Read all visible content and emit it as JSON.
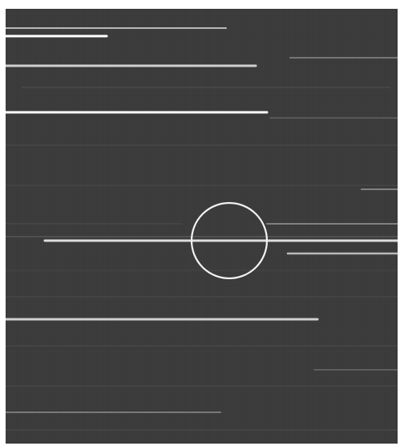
{
  "scene": {
    "background_color": "#3b3b3b",
    "streak_color": "#e8e8e8",
    "circle_color": "#f2f2f2"
  }
}
